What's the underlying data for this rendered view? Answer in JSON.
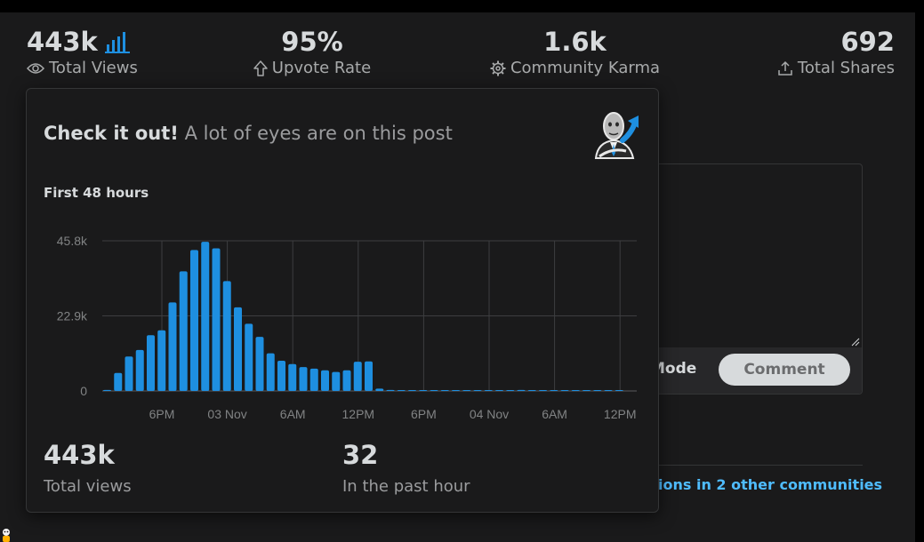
{
  "stats": [
    {
      "value": "443k",
      "label": "Total Views",
      "icon": "eye-icon"
    },
    {
      "value": "95%",
      "label": "Upvote Rate",
      "icon": "upvote-arrow-icon"
    },
    {
      "value": "1.6k",
      "label": "Community Karma",
      "icon": "karma-gear-icon"
    },
    {
      "value": "692",
      "label": "Total Shares",
      "icon": "share-icon"
    }
  ],
  "colors": {
    "accent": "#1e8fe0",
    "link": "#4fbcff",
    "background": "#1a1a1b"
  },
  "background_ui": {
    "mode_label": "Mode",
    "comment_button": "Comment",
    "crosspost_link": "ions in 2 other communities"
  },
  "popover": {
    "heading_strong": "Check it out!",
    "heading_rest": "A lot of eyes are on this post",
    "chart_title": "First 48 hours",
    "total_views_value": "443k",
    "total_views_label": "Total views",
    "past_hour_value": "32",
    "past_hour_label": "In the past hour"
  },
  "chart_data": {
    "type": "bar",
    "title": "First 48 hours",
    "y_ticks": [
      "45.8k",
      "22.9k",
      "0"
    ],
    "ylim": [
      0,
      45800
    ],
    "x_ticks": [
      "6PM",
      "03 Nov",
      "6AM",
      "12PM",
      "6PM",
      "04 Nov",
      "6AM",
      "12PM"
    ],
    "grid": true,
    "values": [
      300,
      5500,
      10500,
      12500,
      17000,
      18500,
      27000,
      36500,
      43000,
      45500,
      43500,
      33500,
      25500,
      20500,
      16500,
      11500,
      9200,
      8200,
      7300,
      6800,
      6300,
      5800,
      6300,
      8900,
      9000,
      700,
      300,
      200,
      150,
      100,
      100,
      100,
      80,
      80,
      80,
      60,
      60,
      60,
      300,
      40,
      30,
      20,
      20,
      10,
      10,
      10,
      10,
      10
    ]
  }
}
